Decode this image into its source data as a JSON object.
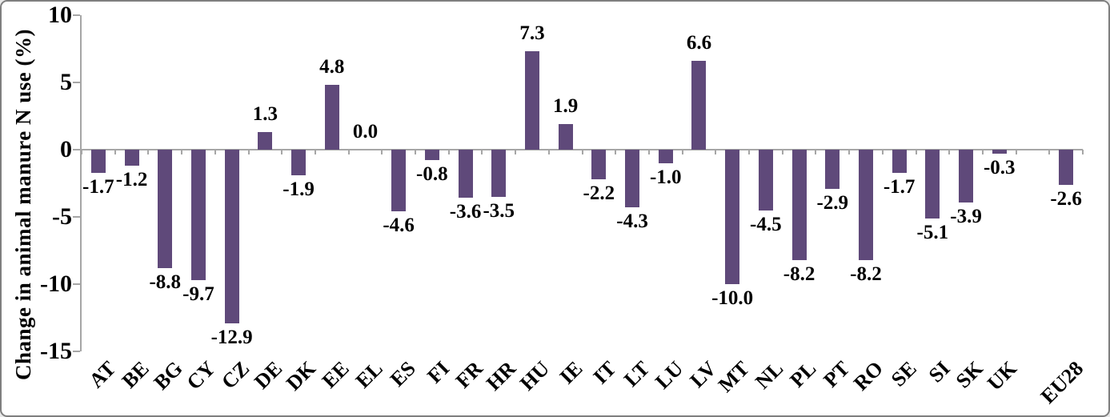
{
  "chart_data": {
    "type": "bar",
    "title": "",
    "ylabel": "Change in animal manure N use (%)",
    "xlabel": "",
    "ylim": [
      -15,
      10
    ],
    "yticks": [
      {
        "value": 10,
        "label": "10"
      },
      {
        "value": 5,
        "label": "5"
      },
      {
        "value": 0,
        "label": "0"
      },
      {
        "value": -5,
        "label": "-5"
      },
      {
        "value": -10,
        "label": "-10"
      },
      {
        "value": -15,
        "label": "-15"
      }
    ],
    "categories": [
      "AT",
      "BE",
      "BG",
      "CY",
      "CZ",
      "DE",
      "DK",
      "EE",
      "EL",
      "ES",
      "FI",
      "FR",
      "HR",
      "HU",
      "IE",
      "IT",
      "LT",
      "LU",
      "LV",
      "MT",
      "NL",
      "PL",
      "PT",
      "RO",
      "SE",
      "SI",
      "SK",
      "UK",
      "EU28"
    ],
    "values": [
      -1.7,
      -1.2,
      -8.8,
      -9.7,
      -12.9,
      1.3,
      -1.9,
      4.8,
      0.0,
      -4.6,
      -0.8,
      -3.6,
      -3.5,
      7.3,
      1.9,
      -2.2,
      -4.3,
      -1.0,
      6.6,
      -10.0,
      -4.5,
      -8.2,
      -2.9,
      -8.2,
      -1.7,
      -5.1,
      -3.9,
      -0.3,
      -2.6
    ],
    "data_labels": [
      "-1.7",
      "-1.2",
      "-8.8",
      "-9.7",
      "-12.9",
      "1.3",
      "-1.9",
      "4.8",
      "0.0",
      "-4.6",
      "-0.8",
      "-3.6",
      "-3.5",
      "7.3",
      "1.9",
      "-2.2",
      "-4.3",
      "-1.0",
      "6.6",
      "-10.0",
      "-4.5",
      "-8.2",
      "-2.9",
      "-8.2",
      "-1.7",
      "-5.1",
      "-3.9",
      "-0.3",
      "-2.6"
    ],
    "separator_before_last_category": true,
    "grid": false,
    "legend": "none",
    "colors": {
      "bar": "#5F497A",
      "axis": "#A6A6A6",
      "text": "#000000",
      "background": "#FFFFFF",
      "frame_border": "#7F7F7F"
    }
  }
}
